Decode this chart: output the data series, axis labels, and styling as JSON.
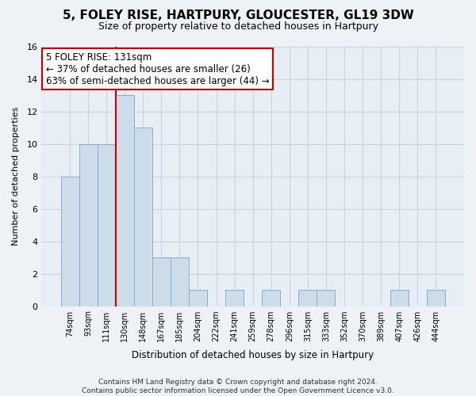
{
  "title": "5, FOLEY RISE, HARTPURY, GLOUCESTER, GL19 3DW",
  "subtitle": "Size of property relative to detached houses in Hartpury",
  "xlabel": "Distribution of detached houses by size in Hartpury",
  "ylabel": "Number of detached properties",
  "bin_labels": [
    "74sqm",
    "93sqm",
    "111sqm",
    "130sqm",
    "148sqm",
    "167sqm",
    "185sqm",
    "204sqm",
    "222sqm",
    "241sqm",
    "259sqm",
    "278sqm",
    "296sqm",
    "315sqm",
    "333sqm",
    "352sqm",
    "370sqm",
    "389sqm",
    "407sqm",
    "426sqm",
    "444sqm"
  ],
  "bar_heights": [
    8,
    10,
    10,
    13,
    11,
    3,
    3,
    1,
    0,
    1,
    0,
    1,
    0,
    1,
    1,
    0,
    0,
    0,
    1,
    0,
    1
  ],
  "bar_color": "#ccdce8",
  "bar_edge_color": "#88aec8",
  "redline_x": 2.5,
  "redline_color": "#cc0000",
  "annotation_line1": "5 FOLEY RISE: 131sqm",
  "annotation_line2": "← 37% of detached houses are smaller (26)",
  "annotation_line3": "63% of semi-detached houses are larger (44) →",
  "annotation_box_color": "#ffffff",
  "annotation_box_edge": "#cc0000",
  "ylim": [
    0,
    16
  ],
  "yticks": [
    0,
    2,
    4,
    6,
    8,
    10,
    12,
    14,
    16
  ],
  "footer_line1": "Contains HM Land Registry data © Crown copyright and database right 2024.",
  "footer_line2": "Contains public sector information licensed under the Open Government Licence v3.0.",
  "background_color": "#eef2f7",
  "plot_background_color": "#e8eef5",
  "grid_color": "#c8d4e0",
  "title_fontsize": 11,
  "subtitle_fontsize": 9,
  "annotation_fontsize": 8.5
}
